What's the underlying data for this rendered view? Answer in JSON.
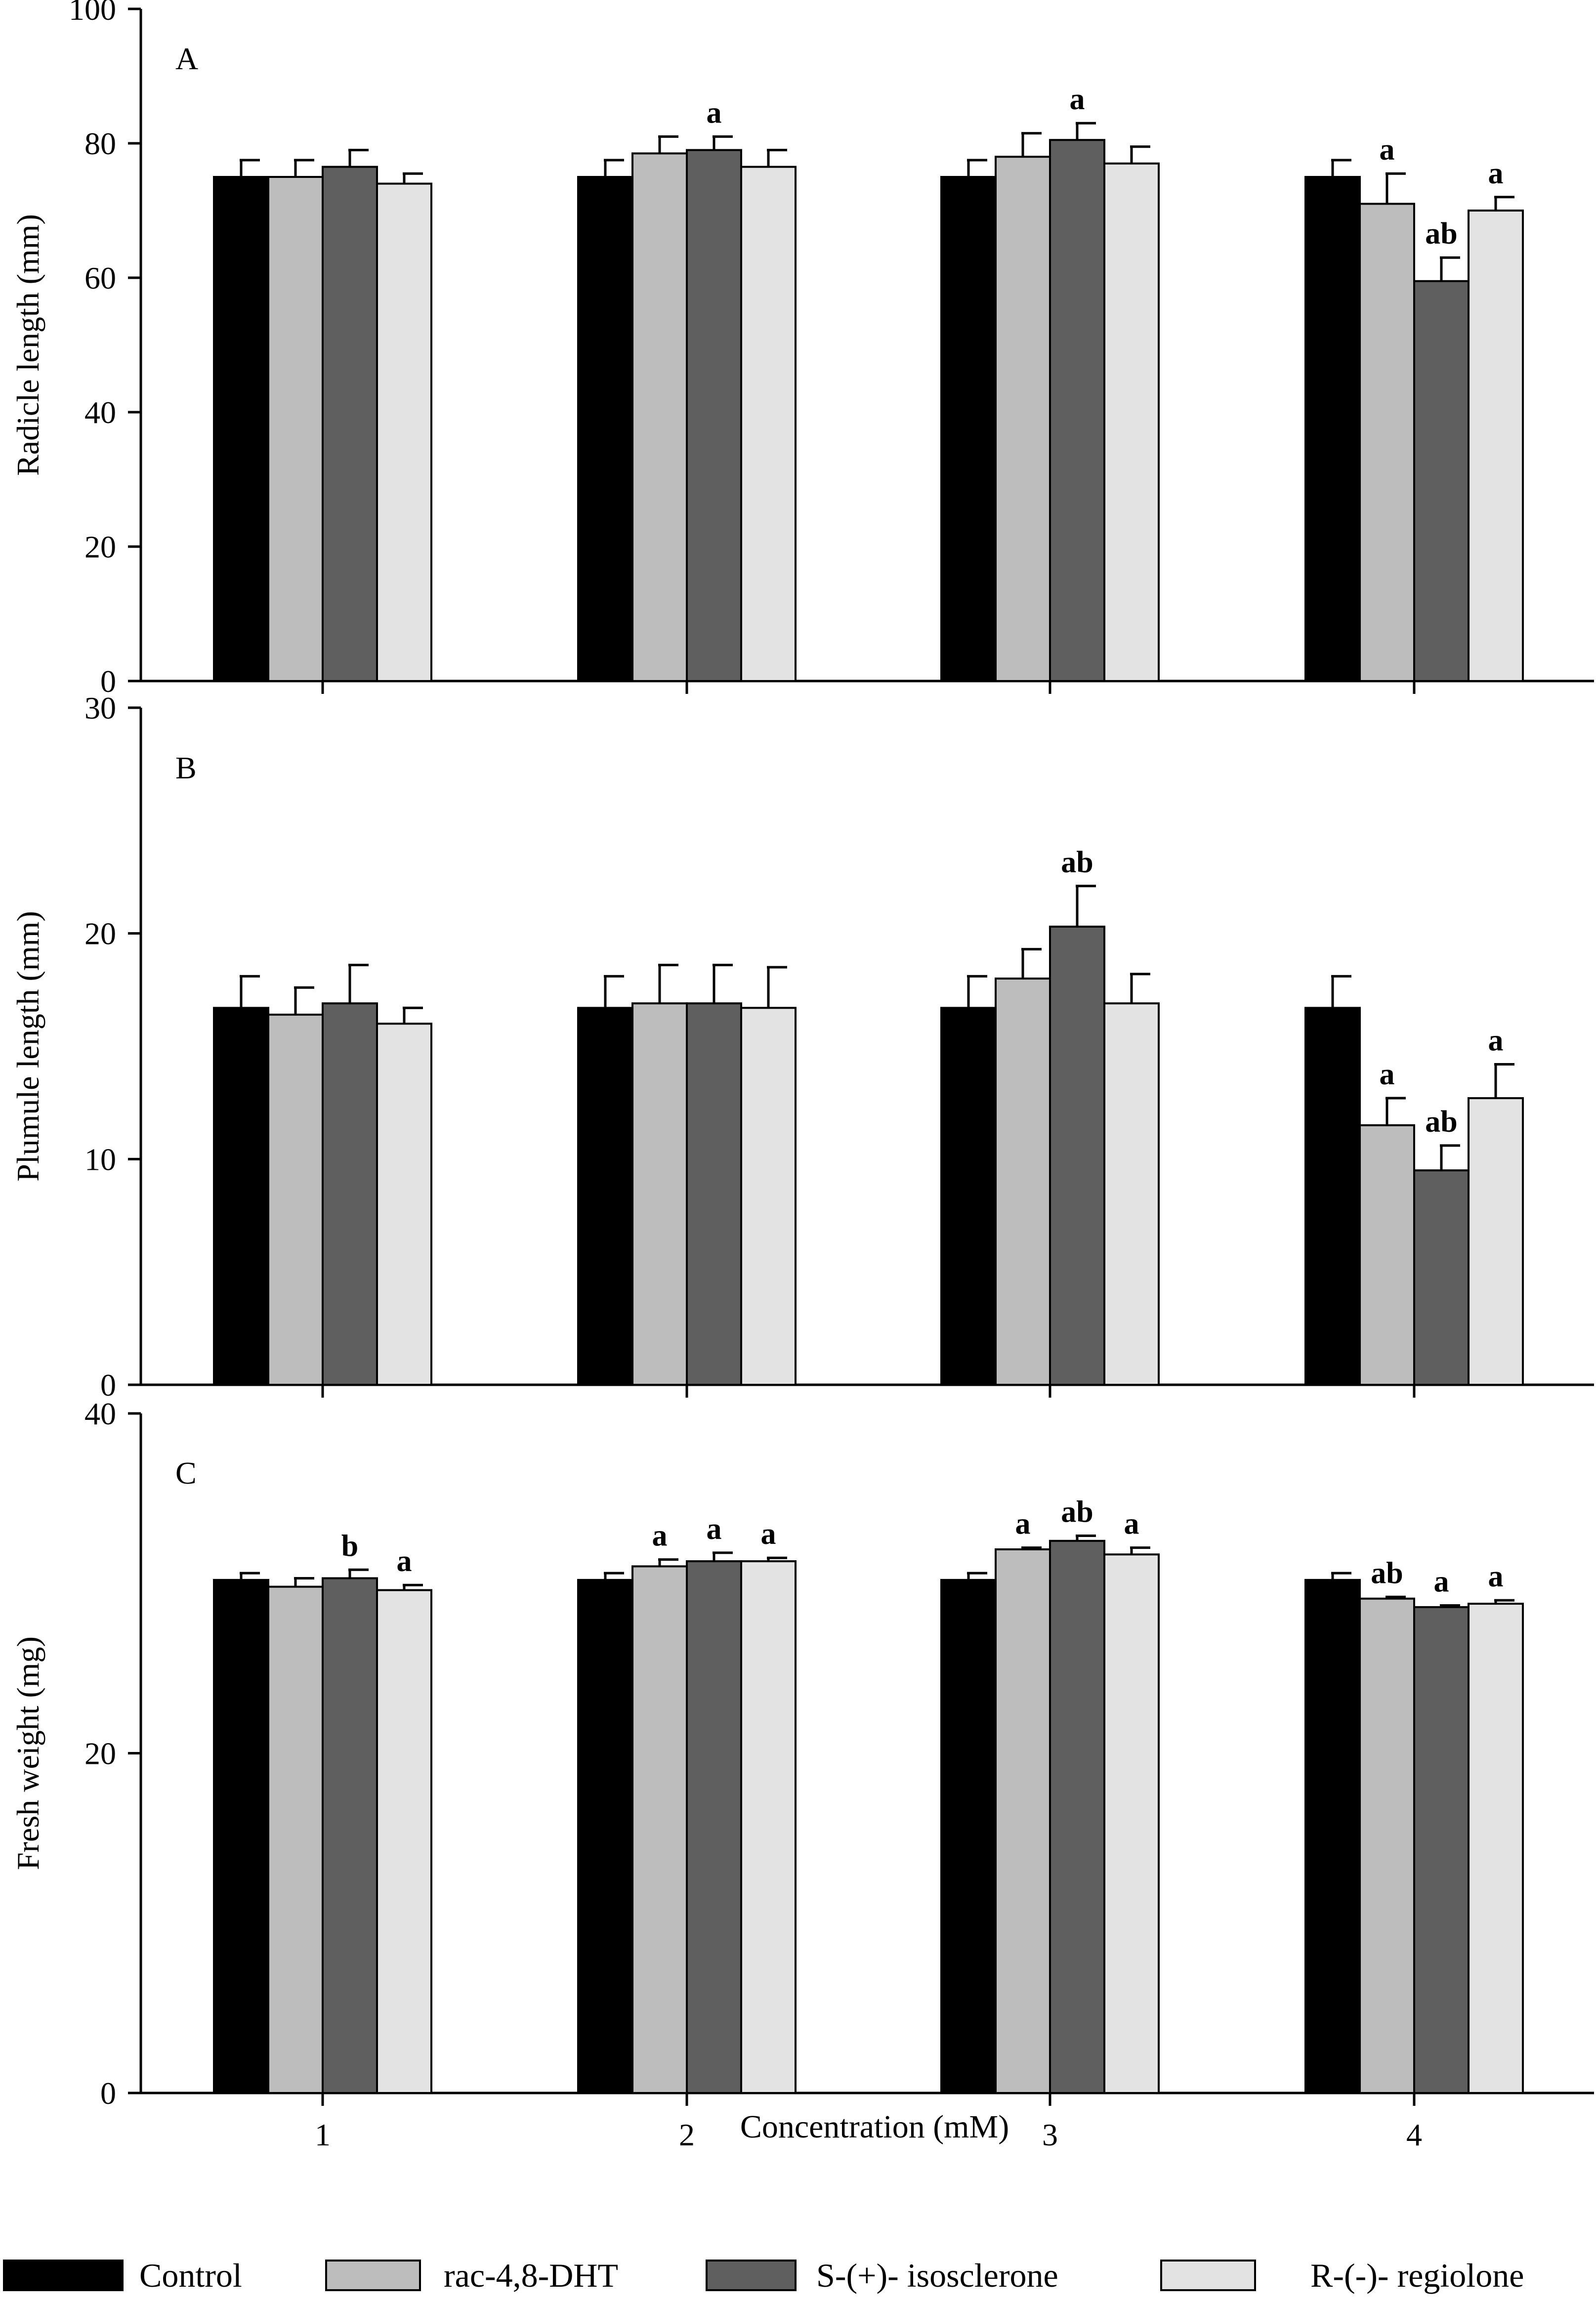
{
  "chart_data": [
    {
      "type": "bar",
      "panel_label": "A",
      "ylabel": "Radicle length (mm)",
      "ylim": [
        0,
        100
      ],
      "yticks": [
        0,
        20,
        40,
        60,
        80,
        100
      ],
      "categories": [
        "1",
        "2",
        "3",
        "4"
      ],
      "series": [
        {
          "name": "Control",
          "values": [
            75,
            75,
            75,
            75
          ],
          "errors": [
            2.5,
            2.5,
            2.5,
            2.5
          ]
        },
        {
          "name": "rac-4,8-DHT",
          "values": [
            75,
            78.5,
            78,
            71
          ],
          "errors": [
            2.5,
            2.5,
            3.5,
            4.5
          ]
        },
        {
          "name": "S-(+)- isosclerone",
          "values": [
            76.5,
            79,
            80.5,
            59.5
          ],
          "errors": [
            2.5,
            2,
            2.5,
            3.5
          ]
        },
        {
          "name": "R-(-)- regiolone",
          "values": [
            74,
            76.5,
            77,
            70
          ],
          "errors": [
            1.5,
            2.5,
            2.5,
            2
          ]
        }
      ],
      "annotations": [
        {
          "category": 1,
          "series": 2,
          "text": "a"
        },
        {
          "category": 2,
          "series": 2,
          "text": "a"
        },
        {
          "category": 3,
          "series": 1,
          "text": "a"
        },
        {
          "category": 3,
          "series": 2,
          "text": "ab"
        },
        {
          "category": 3,
          "series": 3,
          "text": "a"
        }
      ]
    },
    {
      "type": "bar",
      "panel_label": "B",
      "ylabel": "Plumule length (mm)",
      "ylim": [
        0,
        30
      ],
      "yticks": [
        0,
        10,
        20,
        30
      ],
      "categories": [
        "1",
        "2",
        "3",
        "4"
      ],
      "series": [
        {
          "name": "Control",
          "values": [
            16.7,
            16.7,
            16.7,
            16.7
          ],
          "errors": [
            1.4,
            1.4,
            1.4,
            1.4
          ]
        },
        {
          "name": "rac-4,8-DHT",
          "values": [
            16.4,
            16.9,
            18,
            11.5
          ],
          "errors": [
            1.2,
            1.7,
            1.3,
            1.2
          ]
        },
        {
          "name": "S-(+)- isosclerone",
          "values": [
            16.9,
            16.9,
            20.3,
            9.5
          ],
          "errors": [
            1.7,
            1.7,
            1.8,
            1.1
          ]
        },
        {
          "name": "R-(-)- regiolone",
          "values": [
            16,
            16.7,
            16.9,
            12.7
          ],
          "errors": [
            0.7,
            1.8,
            1.3,
            1.5
          ]
        }
      ],
      "annotations": [
        {
          "category": 2,
          "series": 2,
          "text": "ab"
        },
        {
          "category": 3,
          "series": 1,
          "text": "a"
        },
        {
          "category": 3,
          "series": 2,
          "text": "ab"
        },
        {
          "category": 3,
          "series": 3,
          "text": "a"
        }
      ]
    },
    {
      "type": "bar",
      "panel_label": "C",
      "ylabel": "Fresh weight  (mg)",
      "xlabel": "Concentration (mM)",
      "ylim": [
        0,
        40
      ],
      "yticks": [
        0,
        20,
        40
      ],
      "categories": [
        "1",
        "2",
        "3",
        "4"
      ],
      "series": [
        {
          "name": "Control",
          "values": [
            30.2,
            30.2,
            30.2,
            30.2
          ],
          "errors": [
            0.4,
            0.4,
            0.4,
            0.4
          ]
        },
        {
          "name": "rac-4,8-DHT",
          "values": [
            29.8,
            31,
            32,
            29.1
          ],
          "errors": [
            0.5,
            0.4,
            0.1,
            0.1
          ]
        },
        {
          "name": "S-(+)- isosclerone",
          "values": [
            30.3,
            31.3,
            32.5,
            28.6
          ],
          "errors": [
            0.5,
            0.5,
            0.3,
            0.1
          ]
        },
        {
          "name": "R-(-)- regiolone",
          "values": [
            29.6,
            31.3,
            31.7,
            28.8
          ],
          "errors": [
            0.3,
            0.2,
            0.4,
            0.2
          ]
        }
      ],
      "annotations": [
        {
          "category": 0,
          "series": 2,
          "text": "b"
        },
        {
          "category": 0,
          "series": 3,
          "text": "a"
        },
        {
          "category": 1,
          "series": 1,
          "text": "a"
        },
        {
          "category": 1,
          "series": 2,
          "text": "a"
        },
        {
          "category": 1,
          "series": 3,
          "text": "a"
        },
        {
          "category": 2,
          "series": 1,
          "text": "a"
        },
        {
          "category": 2,
          "series": 2,
          "text": "ab"
        },
        {
          "category": 2,
          "series": 3,
          "text": "a"
        },
        {
          "category": 3,
          "series": 1,
          "text": "ab"
        },
        {
          "category": 3,
          "series": 2,
          "text": "a"
        },
        {
          "category": 3,
          "series": 3,
          "text": "a"
        }
      ]
    }
  ],
  "legend": {
    "items": [
      {
        "label": "Control",
        "color": "#000000"
      },
      {
        "label": "rac-4,8-DHT",
        "color": "#bdbdbd"
      },
      {
        "label": "S-(+)- isosclerone",
        "color": "#5f5f5f"
      },
      {
        "label": "R-(-)- regiolone",
        "color": "#e3e3e3"
      }
    ]
  },
  "series_colors": [
    "#000000",
    "#bdbdbd",
    "#5f5f5f",
    "#e3e3e3"
  ]
}
